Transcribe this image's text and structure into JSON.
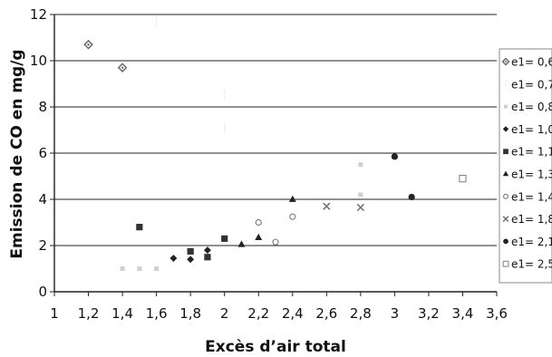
{
  "chart_data": {
    "type": "scatter",
    "title": "",
    "xlabel": "Excès d’air total",
    "ylabel": "Emission de CO en mg/g",
    "xlim": [
      1,
      3.6
    ],
    "ylim": [
      0,
      12
    ],
    "x_ticks": [
      "1",
      "1,2",
      "1,4",
      "1,6",
      "1,8",
      "2",
      "2,2",
      "2,4",
      "2,6",
      "2,8",
      "3",
      "3,2",
      "3,4",
      "3,6"
    ],
    "y_ticks": [
      "0",
      "2",
      "4",
      "6",
      "8",
      "10",
      "12"
    ],
    "grid": "horizontal",
    "legend_position": "right",
    "series": [
      {
        "name": "e1= 0,6",
        "marker": "diamond-dot",
        "color": "#666666",
        "points": [
          [
            1.2,
            10.7
          ],
          [
            1.4,
            9.7
          ]
        ]
      },
      {
        "name": "e1= 0,7",
        "marker": "dash",
        "color": "#e0e0e0",
        "points": [
          [
            1.6,
            11.7
          ],
          [
            2.0,
            8.5
          ],
          [
            2.0,
            7.1
          ]
        ]
      },
      {
        "name": "e1= 0,8",
        "marker": "dot",
        "color": "#d0d0d0",
        "points": [
          [
            1.4,
            1.0
          ],
          [
            1.5,
            1.0
          ],
          [
            1.6,
            1.0
          ],
          [
            2.8,
            5.5
          ],
          [
            2.8,
            4.2
          ]
        ]
      },
      {
        "name": "e1= 1,0",
        "marker": "diamond",
        "color": "#222222",
        "points": [
          [
            1.7,
            1.45
          ],
          [
            1.8,
            1.4
          ],
          [
            1.9,
            1.8
          ]
        ]
      },
      {
        "name": "e1= 1,1",
        "marker": "square",
        "color": "#333333",
        "points": [
          [
            1.5,
            2.8
          ],
          [
            1.8,
            1.75
          ],
          [
            1.9,
            1.5
          ],
          [
            2.0,
            2.3
          ]
        ]
      },
      {
        "name": "e1= 1,3",
        "marker": "triangle",
        "color": "#222222",
        "points": [
          [
            2.1,
            2.05
          ],
          [
            2.2,
            2.35
          ],
          [
            2.4,
            4.0
          ]
        ]
      },
      {
        "name": "e1= 1,4",
        "marker": "circle-open",
        "color": "#777777",
        "points": [
          [
            2.2,
            3.0
          ],
          [
            2.3,
            2.15
          ],
          [
            2.4,
            3.25
          ]
        ]
      },
      {
        "name": "e1= 1,8",
        "marker": "x",
        "color": "#777777",
        "points": [
          [
            2.6,
            3.7
          ],
          [
            2.8,
            3.65
          ]
        ]
      },
      {
        "name": "e1= 2,1",
        "marker": "circle",
        "color": "#222222",
        "points": [
          [
            3.0,
            5.85
          ],
          [
            3.1,
            4.1
          ]
        ]
      },
      {
        "name": "e1= 2,5",
        "marker": "square-open",
        "color": "#888888",
        "points": [
          [
            3.4,
            4.9
          ]
        ]
      }
    ]
  }
}
